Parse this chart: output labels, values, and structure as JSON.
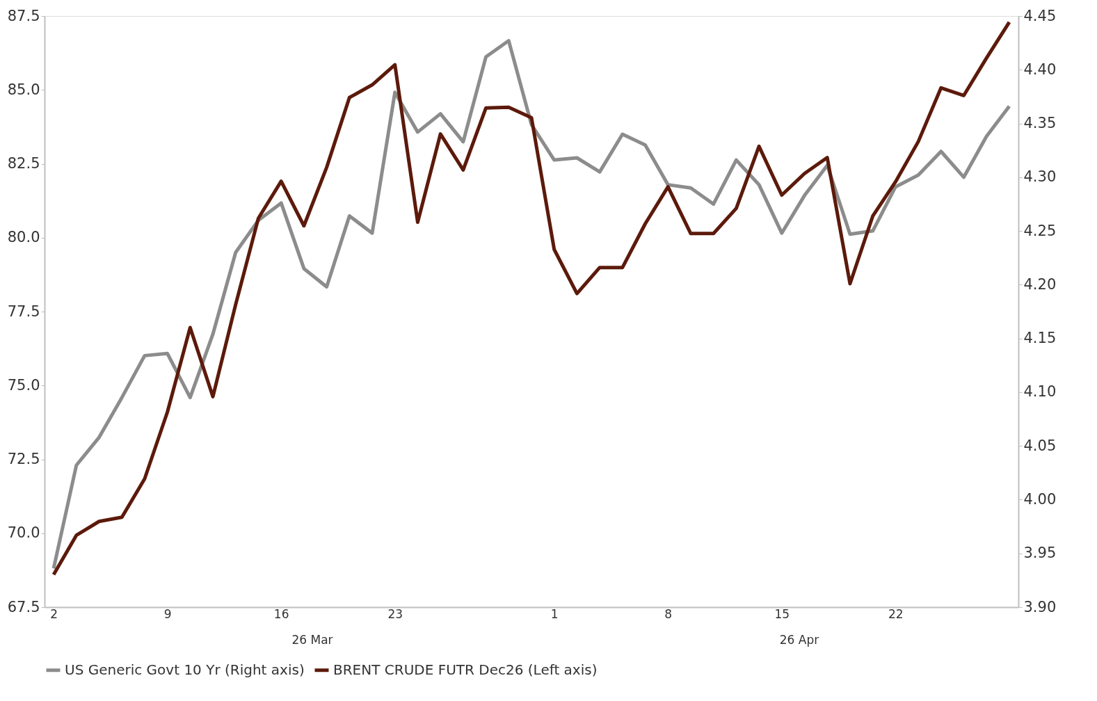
{
  "chart_data": {
    "type": "line",
    "categories": [
      "2",
      null,
      null,
      null,
      null,
      "9",
      null,
      null,
      null,
      null,
      "16",
      null,
      null,
      null,
      null,
      "23",
      null,
      null,
      null,
      null,
      null,
      null,
      "1",
      null,
      null,
      null,
      null,
      "8",
      null,
      null,
      null,
      null,
      "15",
      null,
      null,
      null,
      null,
      "22",
      null,
      null,
      null,
      null,
      null
    ],
    "series": [
      {
        "name": "US Generic Govt 10 Yr (Right axis)",
        "color": "#8c8c8c",
        "axis": "y2",
        "values": [
          3.936,
          4.032,
          4.058,
          4.095,
          4.134,
          4.136,
          4.095,
          4.154,
          4.23,
          4.26,
          4.276,
          4.215,
          4.198,
          4.264,
          4.248,
          4.379,
          4.342,
          4.359,
          4.333,
          4.412,
          4.427,
          4.349,
          4.316,
          4.318,
          4.305,
          4.34,
          4.33,
          4.293,
          4.29,
          4.275,
          4.316,
          4.293,
          4.248,
          4.283,
          4.311,
          4.247,
          4.25,
          4.291,
          4.302,
          4.324,
          4.3,
          4.338,
          4.366
        ]
      },
      {
        "name": "BRENT CRUDE FUTR  Dec26 (Left axis)",
        "color": "#5c1a0b",
        "axis": "y",
        "values": [
          68.6,
          69.93,
          70.4,
          70.54,
          71.84,
          74.1,
          76.96,
          74.62,
          77.74,
          80.66,
          81.91,
          80.4,
          82.38,
          84.74,
          85.17,
          85.85,
          80.52,
          83.51,
          82.29,
          84.39,
          84.41,
          84.06,
          79.6,
          78.11,
          78.99,
          78.99,
          80.47,
          81.72,
          80.14,
          80.14,
          80.99,
          83.09,
          81.44,
          82.17,
          82.71,
          78.44,
          80.73,
          81.89,
          83.25,
          85.07,
          84.81,
          86.08,
          87.29
        ]
      }
    ],
    "ylim": [
      67.5,
      87.5
    ],
    "yticks": [
      {
        "value": 67.5,
        "label": "67.5"
      },
      {
        "value": 70,
        "label": "70.0"
      },
      {
        "value": 72.5,
        "label": "72.5"
      },
      {
        "value": 75,
        "label": "75.0"
      },
      {
        "value": 77.5,
        "label": "77.5"
      },
      {
        "value": 80,
        "label": "80.0"
      },
      {
        "value": 82.5,
        "label": "82.5"
      },
      {
        "value": 85,
        "label": "85.0"
      },
      {
        "value": 87.5,
        "label": "87.5"
      }
    ],
    "y2lim": [
      3.9,
      4.45
    ],
    "y2ticks": [
      {
        "value": 3.9,
        "label": "3.90"
      },
      {
        "value": 3.95,
        "label": "3.95"
      },
      {
        "value": 4.0,
        "label": "4.00"
      },
      {
        "value": 4.05,
        "label": "4.05"
      },
      {
        "value": 4.1,
        "label": "4.10"
      },
      {
        "value": 4.15,
        "label": "4.15"
      },
      {
        "value": 4.2,
        "label": "4.20"
      },
      {
        "value": 4.25,
        "label": "4.25"
      },
      {
        "value": 4.3,
        "label": "4.30"
      },
      {
        "value": 4.35,
        "label": "4.35"
      },
      {
        "value": 4.4,
        "label": "4.40"
      },
      {
        "value": 4.45,
        "label": "4.45"
      }
    ],
    "annotations": [
      "26 Mar",
      "26 Apr"
    ],
    "grid": false,
    "legend": "bottom",
    "marker": "none",
    "line_style": "solid"
  }
}
